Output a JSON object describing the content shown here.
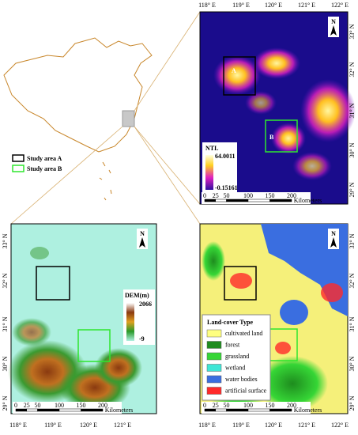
{
  "overview": {
    "legend": [
      "Study area A",
      "Study area B"
    ]
  },
  "ntl_map": {
    "lon_labels": [
      "118° E",
      "119° E",
      "120° E",
      "121° E",
      "122° E"
    ],
    "lat_labels": [
      "33° N",
      "32° N",
      "31° N",
      "30° N",
      "29° N"
    ],
    "north": "N",
    "area_labels": [
      "A",
      "B"
    ],
    "legend_title": "NTL",
    "legend_max": "64.0011",
    "legend_min": "-0.15161",
    "scale_labels": [
      "0",
      "25",
      "50",
      "100",
      "150",
      "200"
    ],
    "scale_unit": "Kilometers"
  },
  "dem_map": {
    "lon_labels": [
      "118° E",
      "119° E",
      "120° E",
      "121° E"
    ],
    "lat_labels": [
      "33° N",
      "32° N",
      "31° N",
      "30° N",
      "29° N"
    ],
    "north": "N",
    "legend_title": "DEM(m)",
    "legend_max": "2066",
    "legend_min": "-9",
    "scale_labels": [
      "0",
      "25",
      "50",
      "100",
      "150",
      "200"
    ],
    "scale_unit": "Kilometers"
  },
  "landcover_map": {
    "lon_labels": [
      "118° E",
      "119° E",
      "120° E",
      "121° E",
      "122° E"
    ],
    "lat_labels": [
      "33° N",
      "32° N",
      "31° N",
      "30° N",
      "29° N"
    ],
    "north": "N",
    "legend_title": "Land-cover Type",
    "classes": [
      {
        "name": "cultivated land",
        "color": "#ffff80"
      },
      {
        "name": "forest",
        "color": "#1e8c1e"
      },
      {
        "name": "grassland",
        "color": "#36d636"
      },
      {
        "name": "wetland",
        "color": "#3ee6d6"
      },
      {
        "name": "water bodies",
        "color": "#3a6ee0"
      },
      {
        "name": "artificial surface",
        "color": "#ff2a2a"
      }
    ],
    "scale_labels": [
      "0",
      "25",
      "50",
      "100",
      "150",
      "200"
    ],
    "scale_unit": "Kilometers"
  }
}
